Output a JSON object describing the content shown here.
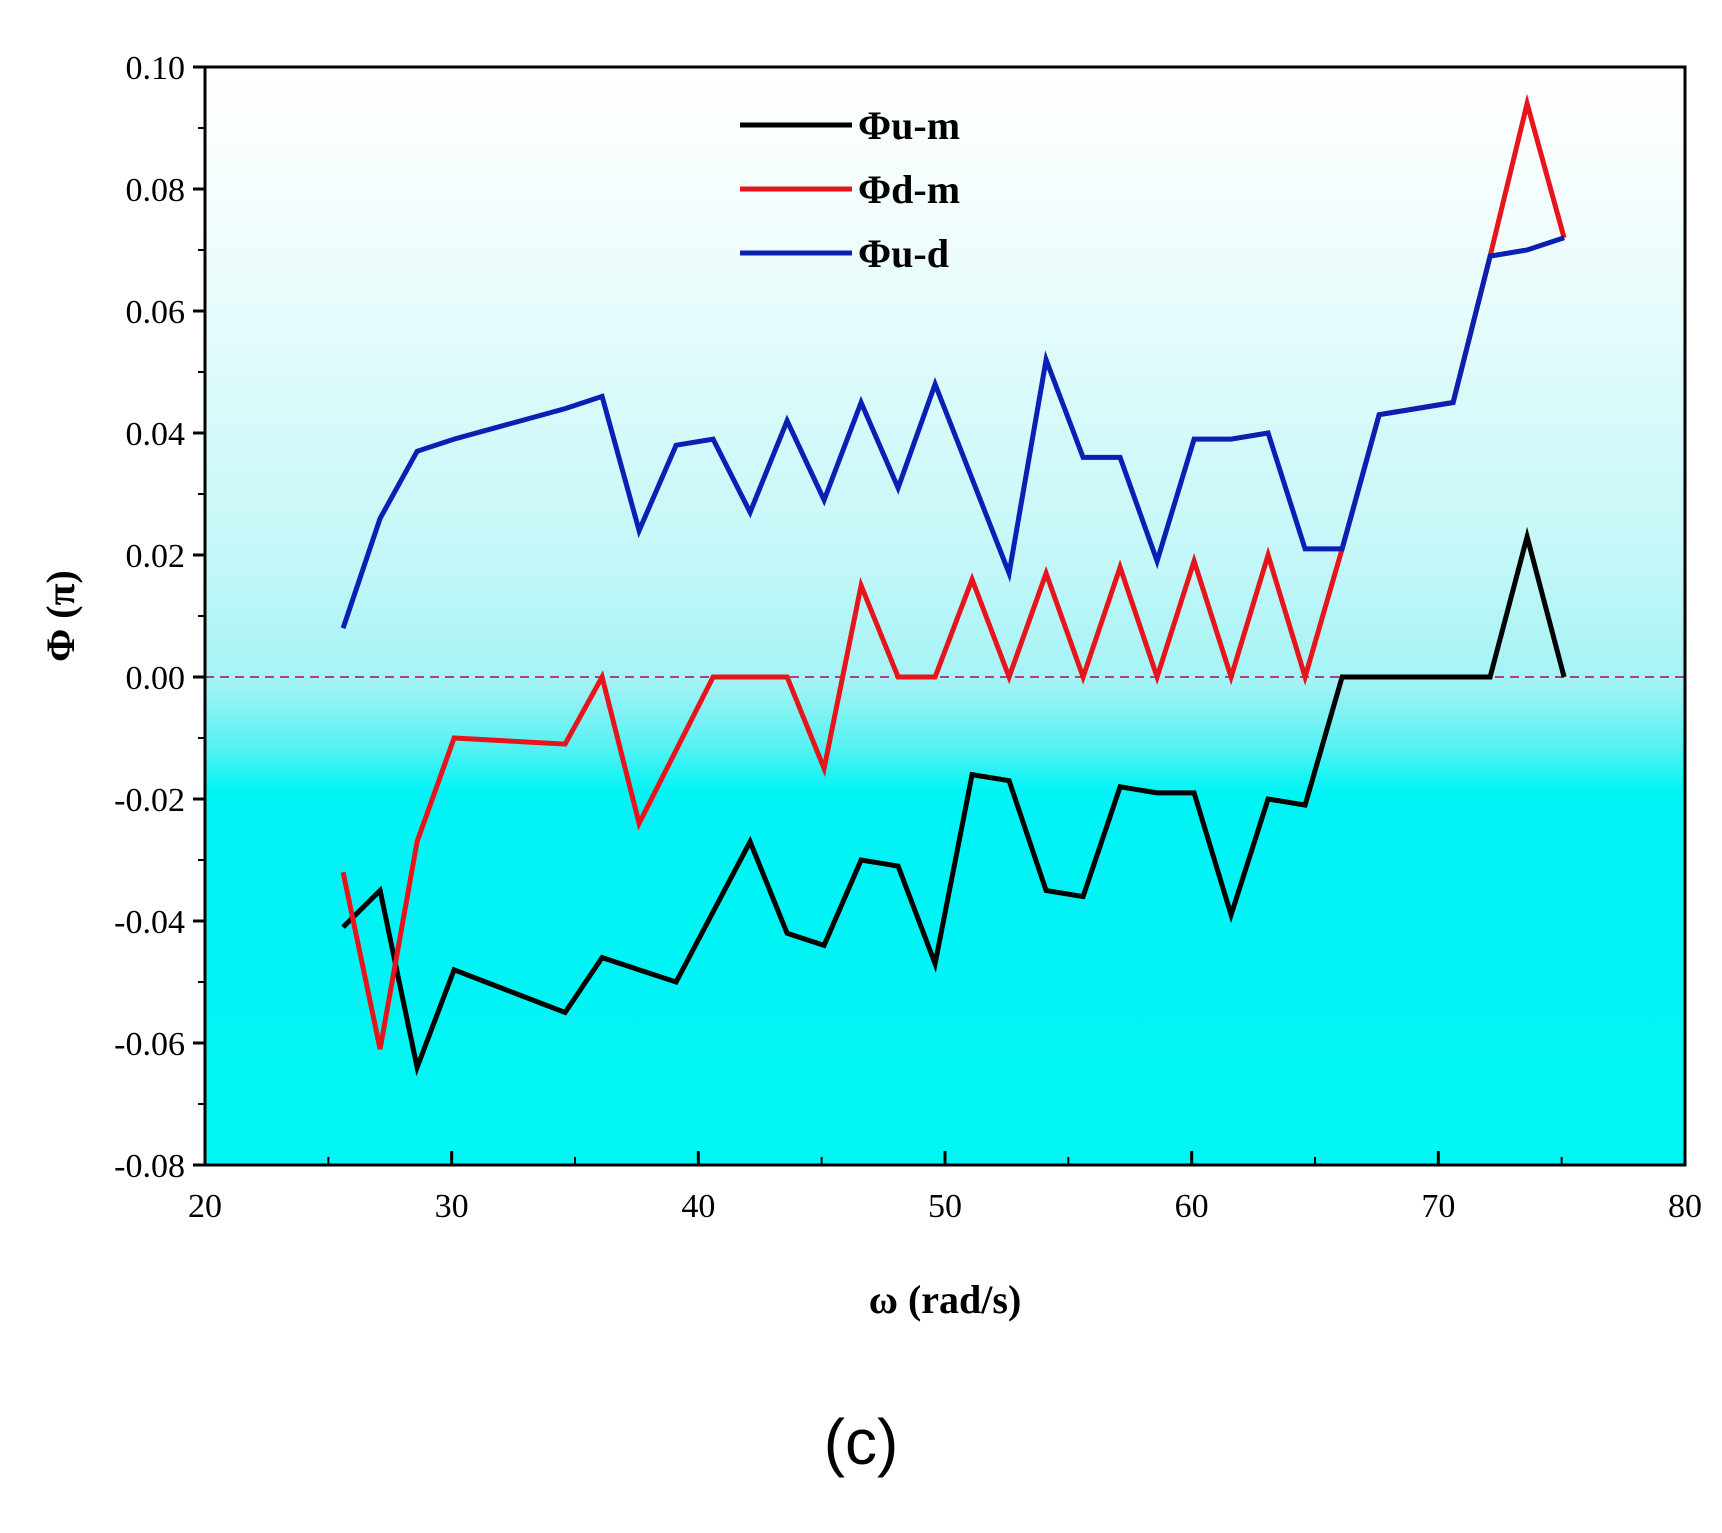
{
  "chart_data": {
    "type": "line",
    "title": "",
    "xlabel": "ω (rad/s)",
    "ylabel": "Φ (π)",
    "xlim": [
      20,
      80
    ],
    "ylim": [
      -0.08,
      0.1
    ],
    "xticks": [
      20,
      30,
      40,
      50,
      60,
      70,
      80
    ],
    "yticks": [
      -0.08,
      -0.06,
      -0.04,
      -0.02,
      0.0,
      0.02,
      0.04,
      0.06,
      0.08,
      0.1
    ],
    "xtick_labels": [
      "20",
      "30",
      "40",
      "50",
      "60",
      "70",
      "80"
    ],
    "ytick_labels": [
      "-0.08",
      "-0.06",
      "-0.04",
      "-0.02",
      "0.00",
      "0.02",
      "0.04",
      "0.06",
      "0.08",
      "0.10"
    ],
    "reference_line": {
      "y": 0.0,
      "style": "dashed",
      "color": "#b03c8a"
    },
    "background": {
      "top_color": "#ffffff",
      "bottom_color": "#00f5f5"
    },
    "legend": {
      "position": "top-center",
      "entries": [
        "Φu-m",
        "Φd-m",
        "Φu-d"
      ]
    },
    "series": [
      {
        "name": "Φu-m",
        "color": "#000000",
        "x": [
          25.6,
          27.1,
          28.6,
          30.1,
          34.6,
          36.1,
          39.1,
          42.1,
          43.6,
          45.1,
          46.6,
          48.1,
          49.6,
          51.1,
          52.6,
          54.1,
          55.6,
          57.1,
          58.6,
          60.1,
          61.6,
          63.1,
          64.6,
          66.1,
          67.6,
          69.1,
          70.6,
          72.1,
          73.6,
          75.1
        ],
        "values": [
          -0.041,
          -0.035,
          -0.064,
          -0.048,
          -0.055,
          -0.046,
          -0.05,
          -0.027,
          -0.042,
          -0.044,
          -0.03,
          -0.031,
          -0.047,
          -0.016,
          -0.017,
          -0.035,
          -0.036,
          -0.018,
          -0.019,
          -0.019,
          -0.039,
          -0.02,
          -0.021,
          0.0,
          0.0,
          0.0,
          0.0,
          0.0,
          0.023,
          0.0
        ]
      },
      {
        "name": "Φd-m",
        "color": "#e8141b",
        "x": [
          25.6,
          27.1,
          28.6,
          30.1,
          34.6,
          36.1,
          37.6,
          40.6,
          42.1,
          43.6,
          45.1,
          46.6,
          48.1,
          49.6,
          51.1,
          52.6,
          54.1,
          55.6,
          57.1,
          58.6,
          60.1,
          61.6,
          63.1,
          64.6,
          66.1,
          67.6,
          69.1,
          70.6,
          72.1,
          73.6,
          75.1
        ],
        "values": [
          -0.032,
          -0.061,
          -0.027,
          -0.01,
          -0.011,
          0.0,
          -0.024,
          0.0,
          0.0,
          0.0,
          -0.015,
          0.015,
          0.0,
          0.0,
          0.016,
          0.0,
          0.017,
          0.0,
          0.018,
          0.0,
          0.019,
          0.0,
          0.02,
          0.0,
          0.021,
          0.043,
          0.044,
          0.045,
          0.069,
          0.094,
          0.072
        ]
      },
      {
        "name": "Φu-d",
        "color": "#0a1fb4",
        "x": [
          25.6,
          27.1,
          28.6,
          30.1,
          34.6,
          36.1,
          37.6,
          39.1,
          40.6,
          42.1,
          43.6,
          45.1,
          46.6,
          48.1,
          49.6,
          52.6,
          54.1,
          55.6,
          57.1,
          58.6,
          60.1,
          61.6,
          63.1,
          64.6,
          66.1,
          67.6,
          69.1,
          70.6,
          72.1,
          73.6,
          75.1
        ],
        "values": [
          0.008,
          0.026,
          0.037,
          0.039,
          0.044,
          0.046,
          0.024,
          0.038,
          0.039,
          0.027,
          0.042,
          0.029,
          0.045,
          0.031,
          0.048,
          0.017,
          0.052,
          0.036,
          0.036,
          0.019,
          0.039,
          0.039,
          0.04,
          0.021,
          0.021,
          0.043,
          0.044,
          0.045,
          0.069,
          0.07,
          0.072
        ]
      }
    ]
  },
  "panel_label": "(c)"
}
